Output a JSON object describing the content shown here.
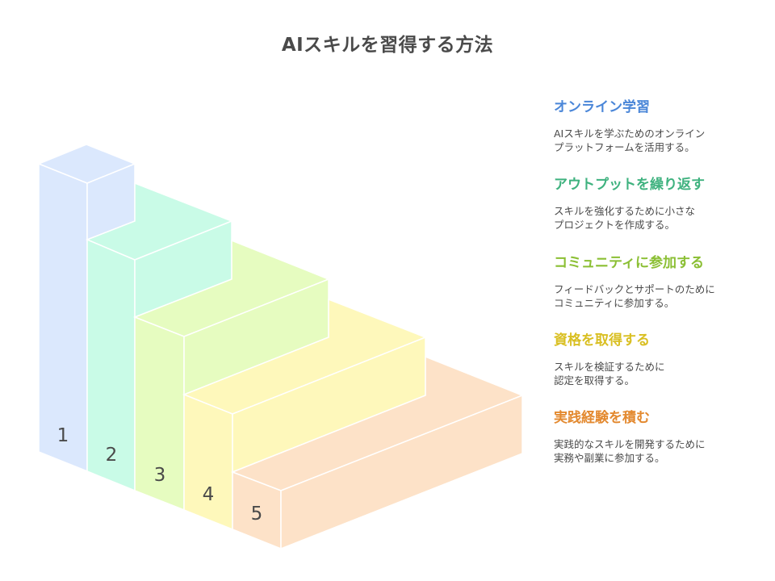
{
  "title": "AIスキルを習得する方法",
  "colors": {
    "step1": {
      "face": "#dbe8fd",
      "top": "#dbe8fd",
      "title": "#4a86d8"
    },
    "step2": {
      "face": "#c9fbe7",
      "top": "#c9fbe7",
      "title": "#3fb27f"
    },
    "step3": {
      "face": "#e6fcc0",
      "top": "#e6fcc0",
      "title": "#8bbf34"
    },
    "step4": {
      "face": "#fef8bb",
      "top": "#fef8bb",
      "title": "#d9bf22"
    },
    "step5": {
      "face": "#fde2c8",
      "top": "#fde2c8",
      "title": "#e3892f"
    }
  },
  "steps": [
    {
      "number": "1",
      "title": "オンライン学習",
      "description": "AIスキルを学ぶためのオンライン\nプラットフォームを活用する。"
    },
    {
      "number": "2",
      "title": "アウトプットを繰り返す",
      "description": "スキルを強化するために小さな\nプロジェクトを作成する。"
    },
    {
      "number": "3",
      "title": "コミュニティに参加する",
      "description": "フィードバックとサポートのために\nコミュニティに参加する。"
    },
    {
      "number": "4",
      "title": "資格を取得する",
      "description": "スキルを検証するために\n認定を取得する。"
    },
    {
      "number": "5",
      "title": "実践経験を積む",
      "description": "実践的なスキルを開発するために\n実務や副業に参加する。"
    }
  ]
}
